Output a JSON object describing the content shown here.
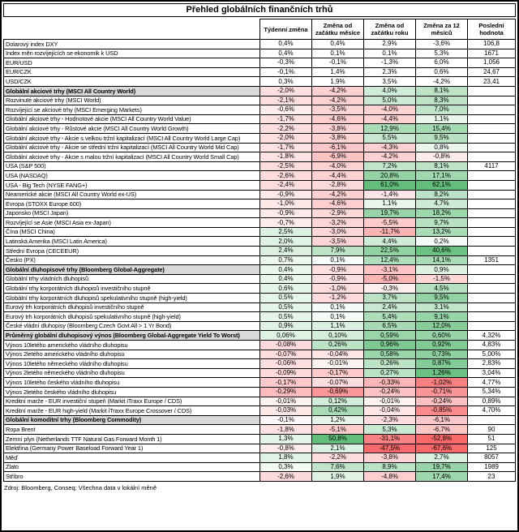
{
  "title": "Přehled globálních finančních trhů",
  "footer": "Zdroj: Bloomberg, Conseq; Všechna data v lokální měně",
  "colors": {
    "negative_full": "#F8696B",
    "positive_full": "#63BE7B",
    "section_bg": "#D9D9D9",
    "grid": "#000000"
  },
  "chart_data": {
    "type": "table",
    "columns": [
      "Týdenní změna",
      "Změna od začátku měsíce",
      "Změna od začátku roku",
      "Změna za 12 měsíců",
      "Poslední hodnota"
    ],
    "rows": [
      {
        "label": "Dolarový index DXY",
        "type": "plain",
        "scale": "none",
        "values": [
          "0,4%",
          "0,4%",
          "2,9%",
          "-3,6%"
        ],
        "last": "106,8"
      },
      {
        "label": "Index měn rozvíjejících se ekonomik k USD",
        "type": "plain",
        "scale": "none",
        "values": [
          "0,4%",
          "0,1%",
          "0,1%",
          "5,3%"
        ],
        "last": "1671"
      },
      {
        "label": "EUR/USD",
        "type": "plain",
        "scale": "none",
        "values": [
          "-0,3%",
          "-0,1%",
          "-1,3%",
          "6,0%"
        ],
        "last": "1,056"
      },
      {
        "label": "EUR/CZK",
        "type": "plain",
        "scale": "none",
        "values": [
          "-0,1%",
          "1,4%",
          "2,3%",
          "0,6%"
        ],
        "last": "24,67"
      },
      {
        "label": "USD/CZK",
        "type": "plain",
        "scale": "none",
        "values": [
          "0,3%",
          "1,9%",
          "3,5%",
          "-4,2%"
        ],
        "last": "23,41"
      },
      {
        "label": "Globální akciové trhy (MSCI All Country World)",
        "type": "section",
        "scale": "equity",
        "values": [
          "-2,0%",
          "-4,2%",
          "4,0%",
          "8,1%"
        ],
        "last": ""
      },
      {
        "label": "Rozvinuté akciové trhy (MSCI World)",
        "type": "sub",
        "scale": "equity",
        "values": [
          "-2,1%",
          "-4,2%",
          "5,0%",
          "8,3%"
        ],
        "last": ""
      },
      {
        "label": "Rozvíjející se akciové trhy (MSCI Emerging Markets)",
        "type": "sub",
        "scale": "equity",
        "values": [
          "-0,6%",
          "-3,5%",
          "-4,0%",
          "7,0%"
        ],
        "last": ""
      },
      {
        "label": "Globální akciové trhy - Hodnotové akcie (MSCI All Country World Value)",
        "type": "sub",
        "scale": "equity",
        "values": [
          "-1,7%",
          "-4,6%",
          "-4,4%",
          "1,1%"
        ],
        "last": ""
      },
      {
        "label": "Globální akciové trhy - Růstové akcie (MSCI All Country World Growth)",
        "type": "sub",
        "scale": "equity",
        "values": [
          "-2,2%",
          "-3,8%",
          "12,9%",
          "15,4%"
        ],
        "last": ""
      },
      {
        "label": "Globální akciové trhy - Akcie s velkou tržní kapitalizací (MSCI All Country World Large Cap)",
        "type": "sub",
        "scale": "equity",
        "values": [
          "-2,0%",
          "-3,8%",
          "5,5%",
          "9,5%"
        ],
        "last": ""
      },
      {
        "label": "Globální akciové trhy - Akcie se střední tržní kapitalizací (MSCI All Country World Mid Cap)",
        "type": "sub",
        "scale": "equity",
        "values": [
          "-1,7%",
          "-6,1%",
          "-4,3%",
          "0,8%"
        ],
        "last": ""
      },
      {
        "label": "Globální akciové trhy - Akcie s malou tržní kapitalizací (MSCI All Country World Small Cap)",
        "type": "sub",
        "scale": "equity",
        "values": [
          "-1,8%",
          "-6,9%",
          "-4,2%",
          "-0,8%"
        ],
        "last": ""
      },
      {
        "label": "USA (S&P 500)",
        "type": "sub",
        "scale": "equity",
        "values": [
          "-2,5%",
          "-4,0%",
          "7,2%",
          "8,1%"
        ],
        "last": "4117"
      },
      {
        "label": "USA (NASDAQ)",
        "type": "sub",
        "scale": "equity",
        "values": [
          "-2,6%",
          "-4,4%",
          "20,8%",
          "17,1%"
        ],
        "last": ""
      },
      {
        "label": "USA - Big Tech (NYSE FANG+)",
        "type": "sub",
        "scale": "equity",
        "values": [
          "-2,4%",
          "-2,8%",
          "61,0%",
          "62,1%"
        ],
        "last": ""
      },
      {
        "label": "Neamerické akcie (MSCI All Country World ex-US)",
        "type": "sub",
        "scale": "equity",
        "values": [
          "-0,9%",
          "-4,2%",
          "-1,4%",
          "8,2%"
        ],
        "last": ""
      },
      {
        "label": "Evropa (STOXX Europe 600)",
        "type": "sub",
        "scale": "equity",
        "values": [
          "-1,0%",
          "-4,6%",
          "1,1%",
          "4,7%"
        ],
        "last": ""
      },
      {
        "label": "Japonsko (MSCI Japan)",
        "type": "sub",
        "scale": "equity",
        "values": [
          "-0,9%",
          "-2,9%",
          "19,7%",
          "18,2%"
        ],
        "last": ""
      },
      {
        "label": "Rozvíjející se Asie (MSCI Asia ex-Japan)",
        "type": "sub",
        "scale": "equity",
        "values": [
          "-0,7%",
          "-3,2%",
          "-5,5%",
          "9,7%"
        ],
        "last": ""
      },
      {
        "label": "Čína (MSCI China)",
        "type": "sub",
        "scale": "equity",
        "values": [
          "2,5%",
          "-3,0%",
          "-11,7%",
          "13,2%"
        ],
        "last": ""
      },
      {
        "label": "Latinská Amerika (MSCI Latin America)",
        "type": "sub",
        "scale": "equity",
        "values": [
          "2,0%",
          "-3,5%",
          "4,4%",
          "0,2%"
        ],
        "last": ""
      },
      {
        "label": "Střední Evropa (CECEEUR)",
        "type": "sub",
        "scale": "equity",
        "values": [
          "2,4%",
          "7,9%",
          "22,5%",
          "40,6%"
        ],
        "last": ""
      },
      {
        "label": "Česko (PX)",
        "type": "sub",
        "scale": "equity",
        "values": [
          "0,7%",
          "0,1%",
          "12,4%",
          "14,1%"
        ],
        "last": "1351"
      },
      {
        "label": "Globální dluhopisové trhy (Bloomberg Global-Aggregate)",
        "type": "section",
        "scale": "bond",
        "values": [
          "0,4%",
          "-0,9%",
          "-3,1%",
          "0,9%"
        ],
        "last": ""
      },
      {
        "label": "Globální trhy vládních dluhopisů",
        "type": "sub",
        "scale": "bond",
        "values": [
          "0,4%",
          "-0,9%",
          "-5,0%",
          "-1,5%"
        ],
        "last": ""
      },
      {
        "label": "Globální trhy korporátních dluhopisů investičního stupně",
        "type": "sub",
        "scale": "bond",
        "values": [
          "0,6%",
          "-1,0%",
          "-0,3%",
          "4,5%"
        ],
        "last": ""
      },
      {
        "label": "Globální trhy korporátních dluhopisů spekulativního stupně (high-yield)",
        "type": "sub",
        "scale": "bond",
        "values": [
          "0,5%",
          "-1,2%",
          "3,7%",
          "9,5%"
        ],
        "last": ""
      },
      {
        "label": "Eurový trh korporátních dluhopisů investičního stupně",
        "type": "sub",
        "scale": "bond",
        "values": [
          "0,5%",
          "0,1%",
          "2,4%",
          "3,1%"
        ],
        "last": ""
      },
      {
        "label": "Eurový trh korporátních dluhopisů spekulativního stupně (high-yield)",
        "type": "sub",
        "scale": "bond",
        "values": [
          "0,5%",
          "0,1%",
          "5,4%",
          "9,1%"
        ],
        "last": ""
      },
      {
        "label": "České vládní dluhopisy (Bloomberg Czech Govt All > 1 Yr Bond)",
        "type": "sub",
        "scale": "bond",
        "values": [
          "0,9%",
          "1,1%",
          "6,5%",
          "12,0%"
        ],
        "last": ""
      },
      {
        "label": "Průměrný globální dluhopisový výnos (Bloomberg Global-Aggregate Yield To Worst)",
        "type": "section",
        "scale": "pp",
        "values": [
          "0,06%",
          "0,10%",
          "0,59%",
          "0,60%"
        ],
        "last": "4,32%"
      },
      {
        "label": "Výnos 10letého amerického vládního dluhopisu",
        "type": "sub",
        "scale": "pp",
        "values": [
          "-0,08%",
          "0,26%",
          "0,96%",
          "0,92%"
        ],
        "last": "4,83%"
      },
      {
        "label": "Výnos 2letého amerického vládního dluhopisu",
        "type": "sub",
        "scale": "pp",
        "values": [
          "-0,07%",
          "-0,04%",
          "0,58%",
          "0,73%"
        ],
        "last": "5,00%"
      },
      {
        "label": "Výnos 10letého německého vládního dluhopisu",
        "type": "sub",
        "scale": "pp",
        "values": [
          "-0,06%",
          "-0,01%",
          "0,26%",
          "0,87%"
        ],
        "last": "2,83%"
      },
      {
        "label": "Výnos 2letého německého vládního dluhopisu",
        "type": "sub",
        "scale": "pp",
        "values": [
          "-0,09%",
          "-0,17%",
          "0,27%",
          "1,26%"
        ],
        "last": "3,04%"
      },
      {
        "label": "Výnos 10letého českého vládního dluhopisu",
        "type": "sub",
        "scale": "pp",
        "values": [
          "-0,17%",
          "-0,07%",
          "-0,33%",
          "-1,02%"
        ],
        "last": "4,77%"
      },
      {
        "label": "Výnos 2letého českého vládního dluhopisu",
        "type": "sub",
        "scale": "pp",
        "values": [
          "-0,29%",
          "-0,69%",
          "-0,24%",
          "-0,71%"
        ],
        "last": "5,34%"
      },
      {
        "label": "Kreditní marže - EUR investiční stupeň (Markit iTraxx Europe / CDS)",
        "type": "sub",
        "scale": "pp",
        "values": [
          "-0,01%",
          "0,12%",
          "-0,01%",
          "-0,24%"
        ],
        "last": "0,89%"
      },
      {
        "label": "Kreditní marže - EUR high-yield (Markit iTraxx Europe Crossover / CDS)",
        "type": "sub",
        "scale": "pp",
        "values": [
          "-0,03%",
          "0,42%",
          "-0,04%",
          "-0,85%"
        ],
        "last": "4,70%"
      },
      {
        "label": "Globální komoditní trhy (Bloomberg Commodity)",
        "type": "section",
        "scale": "equity",
        "values": [
          "-0,1%",
          "1,2%",
          "-2,3%",
          "-6,1%"
        ],
        "last": ""
      },
      {
        "label": "Ropa Brent",
        "type": "sub",
        "scale": "equity",
        "values": [
          "-1,8%",
          "-5,1%",
          "5,3%",
          "-6,7%"
        ],
        "last": "90"
      },
      {
        "label": "Zemní plyn (Netherlands TTF Natural Gas Forward Month 1)",
        "type": "sub",
        "scale": "equity",
        "values": [
          "1,3%",
          "50,8%",
          "-31,1%",
          "-52,8%"
        ],
        "last": "51"
      },
      {
        "label": "Elektřina (Germany Power Baseload Forward Year 1)",
        "type": "sub",
        "scale": "equity",
        "values": [
          "-0,8%",
          "2,1%",
          "-47,5%",
          "-67,6%"
        ],
        "last": "125"
      },
      {
        "label": "Měď",
        "type": "sub",
        "scale": "equity",
        "values": [
          "1,8%",
          "-2,2%",
          "-3,8%",
          "2,7%"
        ],
        "last": "8057"
      },
      {
        "label": "Zlato",
        "type": "sub",
        "scale": "equity",
        "values": [
          "0,3%",
          "7,6%",
          "8,9%",
          "19,7%"
        ],
        "last": "1989"
      },
      {
        "label": "Stříbro",
        "type": "sub",
        "scale": "equity",
        "values": [
          "-2,6%",
          "1,9%",
          "-4,8%",
          "17,4%"
        ],
        "last": "23"
      }
    ]
  }
}
